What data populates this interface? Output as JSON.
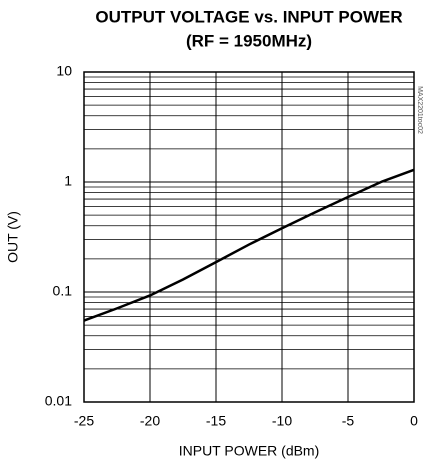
{
  "chart_data": {
    "type": "line",
    "title": "OUTPUT VOLTAGE vs. INPUT POWER",
    "subtitle": "(RF = 1950MHz)",
    "x_label": "INPUT POWER (dBm)",
    "y_label": "OUT (V)",
    "annotation": "MAX2201toc02",
    "x": [
      -25,
      -22.5,
      -20,
      -17.5,
      -15,
      -12.5,
      -10,
      -7.5,
      -5,
      -2.5,
      0
    ],
    "series": [
      {
        "color": "#000000",
        "values": [
          0.055,
          0.071,
          0.093,
          0.13,
          0.187,
          0.27,
          0.38,
          0.53,
          0.73,
          1.0,
          1.29
        ]
      }
    ],
    "xlim": [
      -25,
      0
    ],
    "xticks": [
      -25,
      -20,
      -15,
      -10,
      -5,
      0
    ],
    "ylim": [
      0.01,
      10
    ],
    "yticks": [
      0.01,
      0.1,
      1,
      10
    ],
    "ylog": true,
    "grid": true,
    "yminorticks": [
      0.02,
      0.03,
      0.04,
      0.05,
      0.06,
      0.07,
      0.08,
      0.09,
      0.2,
      0.3,
      0.4,
      0.5,
      0.6,
      0.7,
      0.8,
      0.9,
      2,
      3,
      4,
      5,
      6,
      7,
      8,
      9
    ]
  }
}
